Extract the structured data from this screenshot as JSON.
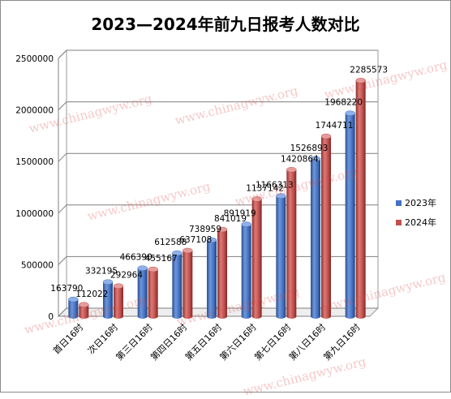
{
  "chart_data": {
    "type": "bar",
    "title": "2023—2024年前九日报考人数对比",
    "categories": [
      "首日16时",
      "次日16时",
      "第三日16时",
      "第四日16时",
      "第五日16时",
      "第六日16时",
      "第七日16时",
      "第八日16时",
      "第九日16时"
    ],
    "series": [
      {
        "name": "2023年",
        "values": [
          163790,
          332195,
          466390,
          612588,
          738959,
          891919,
          1166313,
          1526893,
          1968220
        ],
        "color": "#4472c4"
      },
      {
        "name": "2024年",
        "values": [
          112022,
          292964,
          455167,
          637108,
          841019,
          1137142,
          1420864,
          1744711,
          2285573
        ],
        "color": "#c0504d"
      }
    ],
    "y_ticks": [
      "0",
      "500000",
      "1000000",
      "1500000",
      "2000000",
      "2500000"
    ],
    "ylim": [
      0,
      2500000
    ],
    "grid": true,
    "legend": "right",
    "style": "3d-cylinder"
  },
  "watermark": "www.chinagwyw.org"
}
